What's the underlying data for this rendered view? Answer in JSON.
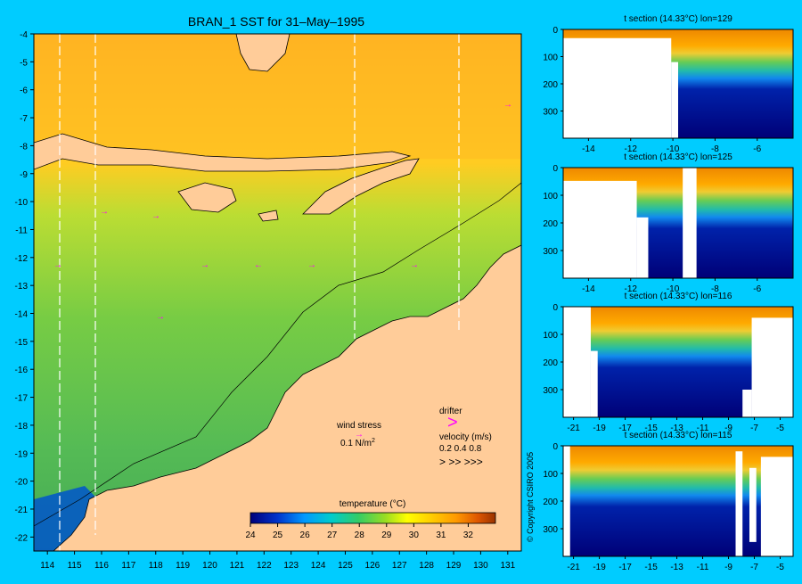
{
  "main_map": {
    "title": "BRAN_1 SST for 31–May–1995",
    "lat_ticks": [
      "-4",
      "-5",
      "-6",
      "-7",
      "-8",
      "-9",
      "-10",
      "-11",
      "-12",
      "-13",
      "-14",
      "-15",
      "-16",
      "-17",
      "-18",
      "-19",
      "-20",
      "-21",
      "-22"
    ],
    "lon_ticks": [
      "114",
      "115",
      "116",
      "117",
      "118",
      "119",
      "120",
      "121",
      "122",
      "123",
      "124",
      "125",
      "126",
      "127",
      "128",
      "129",
      "130",
      "131"
    ],
    "section_lons_label": [
      114.6,
      115.9,
      125.4,
      129.3
    ],
    "wind_stress_label": "wind stress",
    "wind_stress_scale": "0.1 N/m",
    "wind_stress_sup": "2",
    "drifter_label": "drifter",
    "drifter_symbol": ">",
    "velocity_label": "velocity (m/s)",
    "velocity_values": "0.2 0.4 0.8",
    "velocity_arrows": ">   >>   >>>",
    "colorbar_label": "temperature (°C)",
    "colorbar_ticks": [
      "24",
      "25",
      "26",
      "27",
      "28",
      "29",
      "30",
      "31",
      "32"
    ],
    "colors": {
      "background": "#00ccff",
      "land": "#ffcc99",
      "drifter": "#ff00ff"
    }
  },
  "copyright": "© Copyright CSIRO 2005",
  "chart_data": [
    {
      "type": "heatmap",
      "title": "BRAN_1 SST for 31–May–1995",
      "xlim": [
        113.5,
        131.5
      ],
      "ylim": [
        -22.5,
        -4
      ],
      "colorbar": {
        "label": "temperature (°C)",
        "range": [
          24,
          33
        ],
        "ticks": [
          24,
          25,
          26,
          27,
          28,
          29,
          30,
          31,
          32
        ]
      }
    },
    {
      "type": "heatmap",
      "title": "t section (14.33°C) lon=129",
      "x_ticks": [
        "-14",
        "-12",
        "-10",
        "-8",
        "-6"
      ],
      "y_ticks": [
        "0",
        "100",
        "200",
        "300"
      ],
      "xlim": [
        -15.2,
        -4.3
      ],
      "ylim": [
        0,
        400
      ]
    },
    {
      "type": "heatmap",
      "title": "t section (14.33°C) lon=125",
      "x_ticks": [
        "-14",
        "-12",
        "-10",
        "-8",
        "-6"
      ],
      "y_ticks": [
        "0",
        "100",
        "200",
        "300"
      ],
      "xlim": [
        -15.2,
        -4.3
      ],
      "ylim": [
        0,
        400
      ]
    },
    {
      "type": "heatmap",
      "title": "t section (14.33°C) lon=116",
      "x_ticks": [
        "-21",
        "-19",
        "-17",
        "-15",
        "-13",
        "-11",
        "-9",
        "-7",
        "-5"
      ],
      "y_ticks": [
        "0",
        "100",
        "200",
        "300"
      ],
      "xlim": [
        -21.8,
        -4
      ],
      "ylim": [
        0,
        400
      ]
    },
    {
      "type": "heatmap",
      "title": "t section (14.33°C) lon=115",
      "x_ticks": [
        "-21",
        "-19",
        "-17",
        "-15",
        "-13",
        "-11",
        "-9",
        "-7",
        "-5"
      ],
      "y_ticks": [
        "0",
        "100",
        "200",
        "300"
      ],
      "xlim": [
        -21.8,
        -4
      ],
      "ylim": [
        0,
        400
      ]
    }
  ]
}
